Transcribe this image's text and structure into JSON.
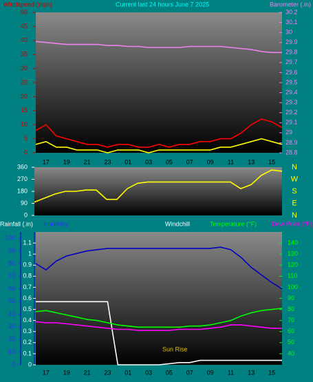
{
  "chart_data": [
    {
      "type": "line",
      "title": "Current last 24 hours June 7 2025",
      "ylabel": "Windspeed (mph)",
      "y2label": "Barometer (.in)",
      "categories": [
        null,
        "17",
        null,
        "19",
        null,
        "21",
        null,
        "23",
        null,
        "01",
        null,
        "03",
        null,
        "05",
        null,
        "07",
        null,
        "09",
        null,
        "11",
        null,
        "13",
        null,
        "15",
        null
      ],
      "ylim": [
        0,
        50
      ],
      "yticks": [
        0,
        5,
        10,
        15,
        20,
        25,
        30,
        35,
        40,
        45,
        50
      ],
      "y2lim": [
        28.8,
        30.2
      ],
      "y2ticks": [
        28.8,
        28.9,
        29,
        29.1,
        29.2,
        29.3,
        29.4,
        29.5,
        29.6,
        29.7,
        29.8,
        29.9,
        30,
        30.1,
        30.2
      ],
      "series": [
        {
          "color": "#ff0000",
          "values": [
            8,
            10,
            6,
            5,
            4,
            3,
            3,
            2,
            3,
            3,
            2,
            2,
            3,
            2,
            3,
            3,
            4,
            4,
            5,
            5,
            7,
            10,
            12,
            11,
            9
          ]
        },
        {
          "color": "#ffff00",
          "values": [
            3,
            4,
            2,
            2,
            1,
            1,
            1,
            0,
            1,
            1,
            1,
            0,
            1,
            1,
            1,
            1,
            1,
            1,
            2,
            2,
            3,
            4,
            5,
            4,
            3
          ]
        },
        {
          "color": "#ee82ee",
          "axis": "y2",
          "values": [
            29.91,
            29.9,
            29.89,
            29.88,
            29.88,
            29.88,
            29.88,
            29.87,
            29.87,
            29.86,
            29.86,
            29.85,
            29.85,
            29.85,
            29.85,
            29.86,
            29.86,
            29.86,
            29.86,
            29.85,
            29.84,
            29.83,
            29.81,
            29.8,
            29.8
          ]
        }
      ]
    },
    {
      "type": "line",
      "ylim": [
        0,
        360
      ],
      "yticks": [
        0,
        90,
        180,
        270,
        360
      ],
      "compass": [
        "N",
        "W",
        "S",
        "E",
        "N"
      ],
      "series": [
        {
          "color": "#ffff00",
          "values": [
            100,
            130,
            160,
            180,
            180,
            190,
            190,
            120,
            120,
            200,
            240,
            250,
            250,
            250,
            250,
            250,
            250,
            250,
            250,
            250,
            200,
            230,
            300,
            340,
            330
          ]
        }
      ]
    },
    {
      "type": "line",
      "ylabel": "Rainfall (.in)",
      "y3label": "Humidity",
      "windchill_label": "Windchill",
      "y2label": "Temperature (°F)",
      "y2label_b": "Dew Point (°F)",
      "annotation": "Sun Rise",
      "categories": [
        null,
        "17",
        null,
        "19",
        null,
        "21",
        null,
        "23",
        null,
        "01",
        null,
        "03",
        null,
        "05",
        null,
        "07",
        null,
        "09",
        null,
        "11",
        null,
        "13",
        null,
        "15",
        null
      ],
      "ylim": [
        0,
        1.2
      ],
      "yticks": [
        0,
        0.1,
        0.2,
        0.3,
        0.4,
        0.5,
        0.6,
        0.7,
        0.8,
        0.9,
        1,
        1.1
      ],
      "y3lim": [
        0,
        105
      ],
      "y3ticks": [
        0,
        10,
        20,
        30,
        40,
        50,
        60,
        70,
        80,
        90,
        100
      ],
      "y2lim": [
        30,
        150
      ],
      "y2ticks": [
        40,
        50,
        60,
        70,
        80,
        90,
        100,
        110,
        120,
        130,
        140
      ],
      "series": [
        {
          "color": "#ffffff",
          "values": [
            0.57,
            0.57,
            0.57,
            0.57,
            0.57,
            0.57,
            0.57,
            0.57,
            0,
            0,
            0,
            0,
            0,
            0.01,
            0.02,
            0.02,
            0.04,
            0.04,
            0.04,
            0.04,
            0.04,
            0.04,
            0.04,
            0.04,
            0.04
          ]
        },
        {
          "color": "#0000c0",
          "axis": "y3",
          "values": [
            80,
            75,
            82,
            86,
            88,
            90,
            91,
            92,
            92,
            92,
            92,
            92,
            92,
            92,
            92,
            92,
            92,
            92,
            93,
            91,
            85,
            77,
            71,
            65,
            60
          ]
        },
        {
          "color": "#00ff00",
          "axis": "y2",
          "values": [
            78,
            79,
            77,
            75,
            73,
            71,
            70,
            68,
            66,
            65,
            64,
            64,
            64,
            64,
            64,
            65,
            65,
            66,
            68,
            70,
            74,
            77,
            79,
            80,
            81
          ]
        },
        {
          "color": "#ff00ff",
          "axis": "y2",
          "values": [
            69,
            68,
            68,
            67,
            66,
            65,
            64,
            63,
            62,
            62,
            61,
            61,
            61,
            61,
            62,
            62,
            62,
            63,
            64,
            66,
            66,
            65,
            64,
            63,
            63
          ]
        }
      ]
    }
  ]
}
